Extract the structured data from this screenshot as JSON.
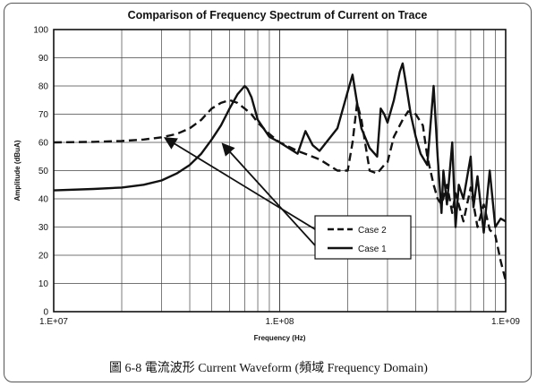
{
  "chart_data": {
    "type": "line",
    "title": "Comparison of Frequency Spectrum of Current on Trace",
    "xlabel": "Frequency (Hz)",
    "ylabel": "Amplitude (dBuA)",
    "x_scale": "log",
    "xlim": [
      10000000,
      1000000000
    ],
    "ylim": [
      0,
      100
    ],
    "x_tick_labels": [
      "1.E+07",
      "1.E+08",
      "1.E+09"
    ],
    "y_tick_labels": [
      "0",
      "10",
      "20",
      "30",
      "40",
      "50",
      "60",
      "70",
      "80",
      "90",
      "100"
    ],
    "grid": true,
    "legend_position": "center-right",
    "series": [
      {
        "name": "Case 2",
        "style": "dashed",
        "x": [
          10000000,
          15000000,
          20000000,
          25000000,
          30000000,
          35000000,
          40000000,
          45000000,
          50000000,
          55000000,
          60000000,
          65000000,
          70000000,
          75000000,
          80000000,
          90000000,
          100000000,
          120000000,
          150000000,
          180000000,
          200000000,
          210000000,
          220000000,
          230000000,
          250000000,
          270000000,
          290000000,
          300000000,
          320000000,
          350000000,
          370000000,
          400000000,
          430000000,
          450000000,
          480000000,
          500000000,
          520000000,
          550000000,
          580000000,
          600000000,
          650000000,
          700000000,
          750000000,
          800000000,
          850000000,
          900000000,
          950000000,
          1000000000
        ],
        "y": [
          60,
          60.2,
          60.5,
          61,
          61.8,
          63,
          65,
          68,
          72,
          74,
          75,
          74,
          72,
          70,
          67,
          63,
          60,
          57,
          54,
          50,
          50,
          60,
          74,
          68,
          50,
          49,
          52,
          53,
          62,
          68,
          71,
          70,
          66,
          55,
          45,
          40,
          38,
          45,
          35,
          42,
          32,
          44,
          30,
          38,
          29,
          27,
          18,
          11
        ]
      },
      {
        "name": "Case 1",
        "style": "solid",
        "x": [
          10000000,
          15000000,
          20000000,
          25000000,
          30000000,
          35000000,
          40000000,
          45000000,
          50000000,
          55000000,
          60000000,
          65000000,
          70000000,
          72000000,
          75000000,
          80000000,
          90000000,
          100000000,
          120000000,
          130000000,
          140000000,
          150000000,
          180000000,
          200000000,
          210000000,
          220000000,
          230000000,
          250000000,
          270000000,
          280000000,
          290000000,
          300000000,
          320000000,
          340000000,
          350000000,
          360000000,
          380000000,
          400000000,
          420000000,
          450000000,
          480000000,
          500000000,
          520000000,
          530000000,
          550000000,
          580000000,
          600000000,
          620000000,
          650000000,
          700000000,
          720000000,
          750000000,
          800000000,
          850000000,
          900000000,
          950000000,
          1000000000
        ],
        "y": [
          43,
          43.5,
          44,
          45,
          46.5,
          49,
          52,
          56,
          61,
          66,
          72,
          77,
          80,
          79,
          76,
          68,
          62,
          60,
          56,
          64,
          59,
          57,
          65,
          78,
          84,
          74,
          65,
          58,
          55,
          72,
          70,
          67,
          75,
          85,
          88,
          82,
          70,
          62,
          56,
          52,
          80,
          55,
          35,
          50,
          38,
          60,
          30,
          45,
          40,
          55,
          37,
          48,
          28,
          50,
          30,
          33,
          32
        ]
      }
    ]
  },
  "caption": "圖 6-8 電流波形 Current Waveform (頻域 Frequency Domain)"
}
